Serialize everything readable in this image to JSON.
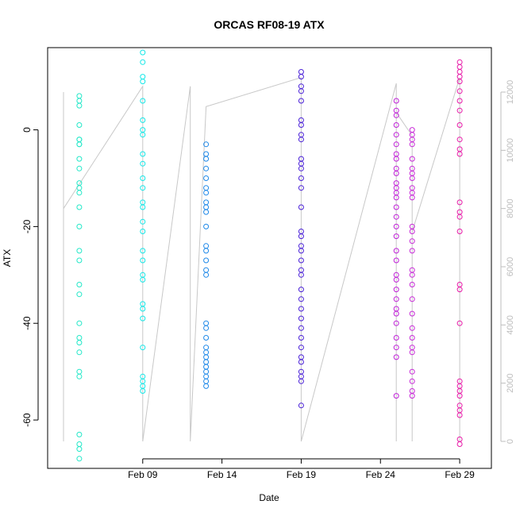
{
  "chart_data": {
    "type": "scatter",
    "title": "ORCAS RF08-19 ATX",
    "xlabel": "Date",
    "ylabel": "ATX",
    "y2label": "",
    "xlim": [
      "2016-02-03",
      "2016-03-02"
    ],
    "ylim": [
      -70,
      17
    ],
    "y2lim": [
      0,
      13000
    ],
    "grid": false,
    "x_ticks": [
      {
        "date": "2016-02-09",
        "label": "Feb 09"
      },
      {
        "date": "2016-02-14",
        "label": "Feb 14"
      },
      {
        "date": "2016-02-19",
        "label": "Feb 19"
      },
      {
        "date": "2016-02-24",
        "label": "Feb 24"
      },
      {
        "date": "2016-02-29",
        "label": "Feb 29"
      }
    ],
    "y_ticks": [
      -60,
      -40,
      -20,
      0
    ],
    "y2_ticks": [
      0,
      2000,
      4000,
      6000,
      8000,
      10000,
      12000
    ],
    "series": [
      {
        "color": "#22E8C8",
        "date": "2016-02-05",
        "values": [
          7,
          6,
          5,
          1,
          -2,
          -3,
          -2,
          -3,
          -6,
          -8,
          -11,
          -12,
          -13,
          -16,
          -20,
          -25,
          -27,
          -32,
          -34,
          -40,
          -43,
          -44,
          -46,
          -50,
          -51,
          -63,
          -65,
          -66,
          -68
        ]
      },
      {
        "color": "#14E8E8",
        "date": "2016-02-09",
        "values": [
          16,
          14,
          11,
          10,
          6,
          2,
          0,
          -1,
          -5,
          -7,
          -10,
          -12,
          -15,
          -16,
          -19,
          -21,
          -25,
          -27,
          -30,
          -31,
          -36,
          -37,
          -39,
          -45,
          -51,
          -52,
          -53,
          -54
        ]
      },
      {
        "color": "#1E88E8",
        "date": "2016-02-13",
        "values": [
          -3,
          -5,
          -6,
          -8,
          -10,
          -12,
          -13,
          -15,
          -16,
          -17,
          -20,
          -24,
          -25,
          -27,
          -29,
          -30,
          -40,
          -41,
          -43,
          -45,
          -46,
          -47,
          -48,
          -49,
          -50,
          -51,
          -52,
          -53
        ]
      },
      {
        "color": "#4A20D8",
        "date": "2016-02-19",
        "values": [
          12,
          11,
          9,
          8,
          6,
          2,
          1,
          -1,
          -2,
          -6,
          -7,
          -8,
          -10,
          -12,
          -16,
          -21,
          -22,
          -24,
          -25,
          -27,
          -29,
          -30,
          -33,
          -35,
          -37,
          -39,
          -41,
          -43,
          -45,
          -47,
          -48,
          -50,
          -51,
          -52,
          -57
        ]
      },
      {
        "color": "#C020D8",
        "date": "2016-02-25",
        "values": [
          6,
          4,
          3,
          1,
          -1,
          -3,
          -5,
          -6,
          -8,
          -9,
          -11,
          -12,
          -13,
          -14,
          -16,
          -18,
          -20,
          -22,
          -25,
          -27,
          -30,
          -31,
          -33,
          -35,
          -37,
          -38,
          -40,
          -43,
          -45,
          -47,
          -55
        ]
      },
      {
        "color": "#C828D8",
        "date": "2016-02-26",
        "values": [
          0,
          -1,
          -2,
          -3,
          -6,
          -8,
          -9,
          -10,
          -12,
          -13,
          -14,
          -20,
          -21,
          -23,
          -25,
          -29,
          -30,
          -32,
          -35,
          -38,
          -41,
          -43,
          -45,
          -46,
          -50,
          -52,
          -54,
          -55
        ]
      },
      {
        "color": "#E81AA8",
        "date": "2016-02-29",
        "values": [
          14,
          13,
          12,
          11,
          10,
          8,
          6,
          4,
          1,
          -2,
          -4,
          -5,
          -15,
          -17,
          -18,
          -21,
          -32,
          -33,
          -40,
          -52,
          -53,
          -54,
          -55,
          -57,
          -58,
          -59,
          -64,
          -65
        ]
      }
    ],
    "altitude_path": [
      {
        "t": "2016-02-04",
        "alt": 12000
      },
      {
        "t": "2016-02-04",
        "alt": 0
      },
      {
        "t": "2016-02-04",
        "alt": 8000
      },
      {
        "t": "2016-02-09",
        "alt": 12200
      },
      {
        "t": "2016-02-09",
        "alt": 0
      },
      {
        "t": "2016-02-12",
        "alt": 12200
      },
      {
        "t": "2016-02-12",
        "alt": 0
      },
      {
        "t": "2016-02-13",
        "alt": 11500
      },
      {
        "t": "2016-02-19",
        "alt": 12500
      },
      {
        "t": "2016-02-19",
        "alt": 0
      },
      {
        "t": "2016-02-25",
        "alt": 12300
      },
      {
        "t": "2016-02-25",
        "alt": 0
      },
      {
        "t": "2016-02-25",
        "alt": 11300
      },
      {
        "t": "2016-02-26",
        "alt": 10500
      },
      {
        "t": "2016-02-26",
        "alt": 0
      },
      {
        "t": "2016-02-26",
        "alt": 7200
      },
      {
        "t": "2016-02-29",
        "alt": 12500
      },
      {
        "t": "2016-02-29",
        "alt": 0
      }
    ]
  }
}
